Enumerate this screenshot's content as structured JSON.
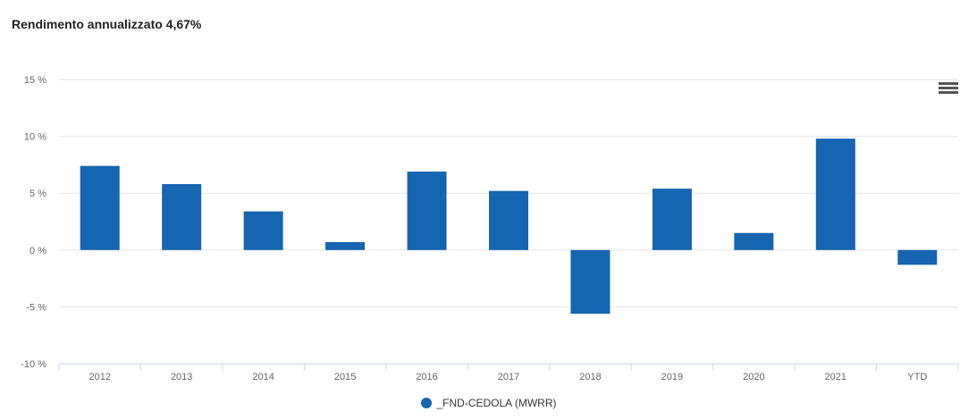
{
  "header": {
    "title": "Rendimento annualizzato 4,67%"
  },
  "colors": {
    "bar": "#1565b0",
    "grid": "#e6e6e6",
    "axis": "#ccd6eb"
  },
  "menu_icon": "hamburger-menu-icon",
  "chart_data": {
    "type": "bar",
    "title": "Rendimento annualizzato 4,67%",
    "categories": [
      "2012",
      "2013",
      "2014",
      "2015",
      "2016",
      "2017",
      "2018",
      "2019",
      "2020",
      "2021",
      "YTD"
    ],
    "series": [
      {
        "name": "_FND-CEDOLA (MWRR)",
        "values": [
          7.4,
          5.8,
          3.4,
          0.7,
          6.9,
          5.2,
          -5.6,
          5.4,
          1.5,
          9.8,
          -1.3
        ]
      }
    ],
    "ylim": [
      -10,
      15
    ],
    "yticks": [
      -10,
      -5,
      0,
      5,
      10,
      15
    ],
    "ytick_labels": [
      "-10 %",
      "-5 %",
      "0 %",
      "5 %",
      "10 %",
      "15 %"
    ],
    "xlabel": "",
    "ylabel": "",
    "grid": true,
    "legend": "bottom-center"
  }
}
